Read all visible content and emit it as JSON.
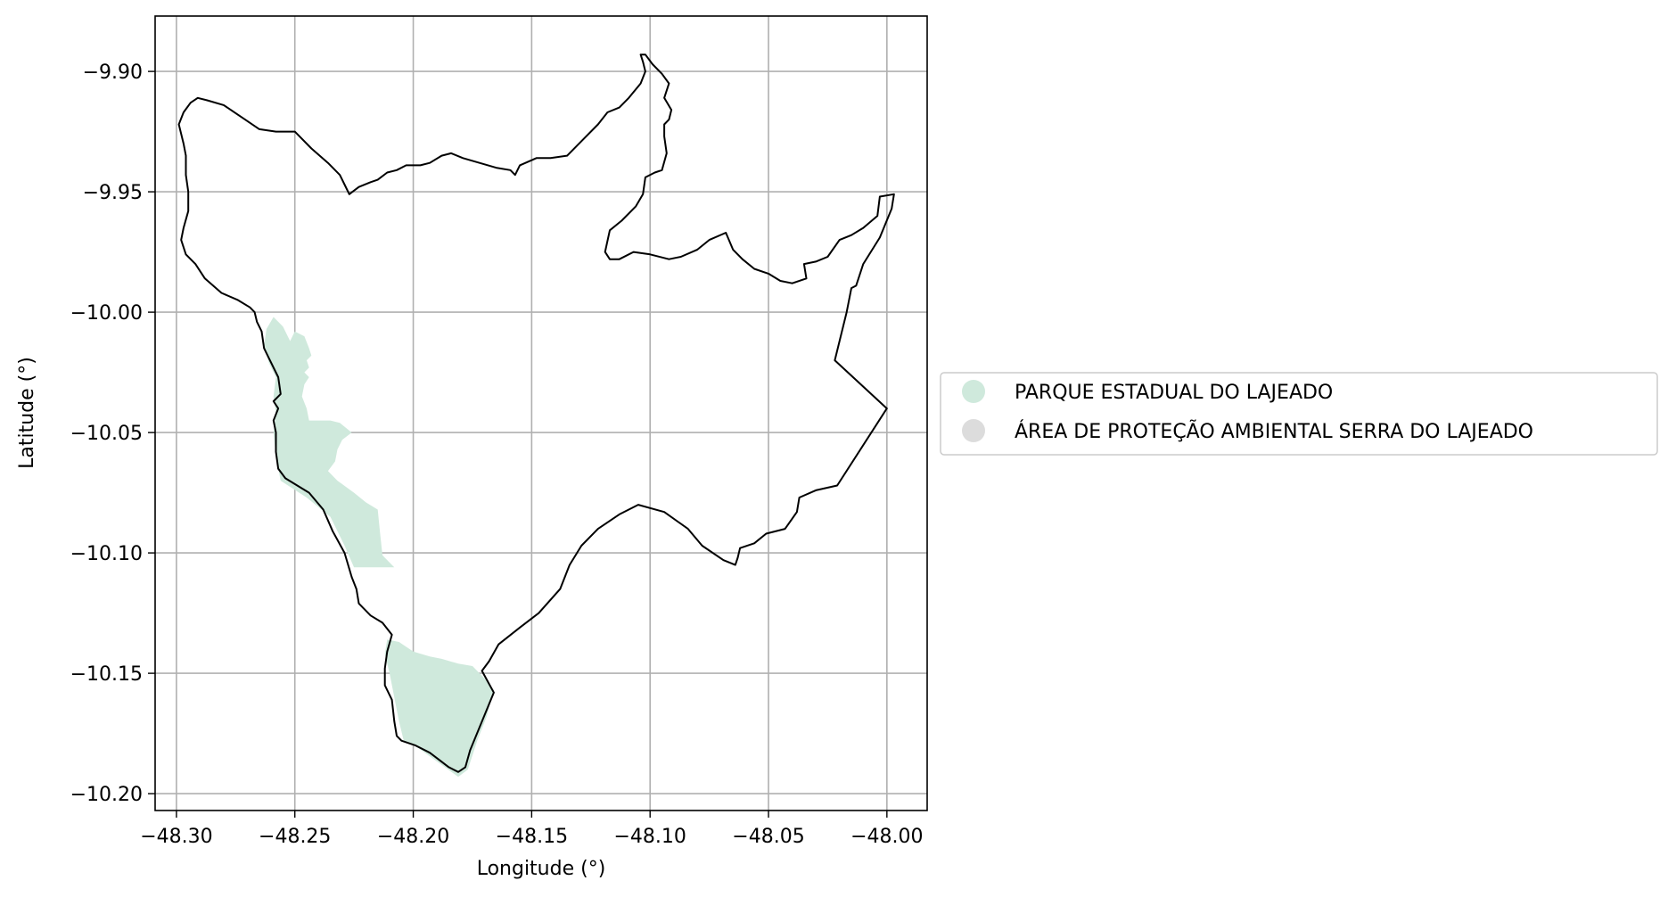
{
  "axes": {
    "xlabel": "Longitude (°)",
    "ylabel": "Latitude (°)",
    "xlim": [
      -48.309,
      -47.983
    ],
    "ylim": [
      -10.207,
      -9.877
    ],
    "xticks": [
      -48.3,
      -48.25,
      -48.2,
      -48.15,
      -48.1,
      -48.05,
      -48.0
    ],
    "yticks": [
      -9.9,
      -9.95,
      -10.0,
      -10.05,
      -10.1,
      -10.15,
      -10.2
    ],
    "xtick_labels": [
      "−48.30",
      "−48.25",
      "−48.20",
      "−48.15",
      "−48.10",
      "−48.05",
      "−48.00"
    ],
    "ytick_labels": [
      "−9.90",
      "−9.95",
      "−10.00",
      "−10.05",
      "−10.10",
      "−10.15",
      "−10.20"
    ],
    "grid": true
  },
  "legend": {
    "placement": "outside-right",
    "items": [
      {
        "label": "PARQUE ESTADUAL DO LAJEADO",
        "color": "#cfe9dc"
      },
      {
        "label": "ÁREA DE PROTEÇÃO AMBIENTAL SERRA DO LAJEADO",
        "color": "#dcdcdc"
      }
    ]
  },
  "chart_data": {
    "type": "map",
    "layers": [
      {
        "name": "PARQUE ESTADUAL DO LAJEADO",
        "color": "#cfe9dc",
        "style": "fill",
        "polygons": [
          [
            [
              -48.259,
              -10.002
            ],
            [
              -48.255,
              -10.006
            ],
            [
              -48.252,
              -10.012
            ],
            [
              -48.25,
              -10.008
            ],
            [
              -48.246,
              -10.01
            ],
            [
              -48.244,
              -10.015
            ],
            [
              -48.243,
              -10.018
            ],
            [
              -48.245,
              -10.02
            ],
            [
              -48.244,
              -10.023
            ],
            [
              -48.246,
              -10.025
            ],
            [
              -48.244,
              -10.027
            ],
            [
              -48.246,
              -10.03
            ],
            [
              -48.247,
              -10.035
            ],
            [
              -48.245,
              -10.04
            ],
            [
              -48.244,
              -10.045
            ],
            [
              -48.235,
              -10.045
            ],
            [
              -48.231,
              -10.046
            ],
            [
              -48.226,
              -10.05
            ],
            [
              -48.23,
              -10.053
            ],
            [
              -48.232,
              -10.057
            ],
            [
              -48.233,
              -10.062
            ],
            [
              -48.236,
              -10.066
            ],
            [
              -48.232,
              -10.07
            ],
            [
              -48.225,
              -10.075
            ],
            [
              -48.22,
              -10.079
            ],
            [
              -48.215,
              -10.082
            ],
            [
              -48.214,
              -10.092
            ],
            [
              -48.213,
              -10.101
            ],
            [
              -48.208,
              -10.106
            ],
            [
              -48.225,
              -10.106
            ],
            [
              -48.229,
              -10.097
            ],
            [
              -48.235,
              -10.085
            ],
            [
              -48.245,
              -10.077
            ],
            [
              -48.256,
              -10.07
            ],
            [
              -48.258,
              -10.06
            ],
            [
              -48.259,
              -10.05
            ],
            [
              -48.258,
              -10.042
            ],
            [
              -48.259,
              -10.035
            ],
            [
              -48.258,
              -10.027
            ],
            [
              -48.261,
              -10.021
            ],
            [
              -48.263,
              -10.014
            ],
            [
              -48.262,
              -10.007
            ]
          ],
          [
            [
              -48.211,
              -10.136
            ],
            [
              -48.206,
              -10.137
            ],
            [
              -48.2,
              -10.141
            ],
            [
              -48.193,
              -10.143
            ],
            [
              -48.188,
              -10.144
            ],
            [
              -48.181,
              -10.146
            ],
            [
              -48.175,
              -10.147
            ],
            [
              -48.17,
              -10.152
            ],
            [
              -48.166,
              -10.157
            ],
            [
              -48.169,
              -10.168
            ],
            [
              -48.173,
              -10.178
            ],
            [
              -48.177,
              -10.19
            ],
            [
              -48.181,
              -10.193
            ],
            [
              -48.188,
              -10.188
            ],
            [
              -48.198,
              -10.181
            ],
            [
              -48.204,
              -10.178
            ],
            [
              -48.206,
              -10.17
            ],
            [
              -48.208,
              -10.16
            ],
            [
              -48.21,
              -10.15
            ],
            [
              -48.212,
              -10.142
            ]
          ]
        ]
      },
      {
        "name": "ÁREA DE PROTEÇÃO AMBIENTAL SERRA DO LAJEADO",
        "color": "#000000",
        "style": "outline",
        "polygons": [
          [
            [
              -48.291,
              -9.911
            ],
            [
              -48.287,
              -9.912
            ],
            [
              -48.28,
              -9.914
            ],
            [
              -48.271,
              -9.92
            ],
            [
              -48.265,
              -9.924
            ],
            [
              -48.258,
              -9.925
            ],
            [
              -48.25,
              -9.925
            ],
            [
              -48.243,
              -9.932
            ],
            [
              -48.236,
              -9.938
            ],
            [
              -48.231,
              -9.943
            ],
            [
              -48.229,
              -9.947
            ],
            [
              -48.227,
              -9.951
            ],
            [
              -48.223,
              -9.948
            ],
            [
              -48.218,
              -9.946
            ],
            [
              -48.215,
              -9.945
            ],
            [
              -48.211,
              -9.942
            ],
            [
              -48.207,
              -9.941
            ],
            [
              -48.203,
              -9.939
            ],
            [
              -48.197,
              -9.939
            ],
            [
              -48.193,
              -9.938
            ],
            [
              -48.188,
              -9.935
            ],
            [
              -48.184,
              -9.934
            ],
            [
              -48.179,
              -9.936
            ],
            [
              -48.172,
              -9.938
            ],
            [
              -48.165,
              -9.94
            ],
            [
              -48.159,
              -9.941
            ],
            [
              -48.157,
              -9.943
            ],
            [
              -48.155,
              -9.939
            ],
            [
              -48.148,
              -9.936
            ],
            [
              -48.142,
              -9.936
            ],
            [
              -48.135,
              -9.935
            ],
            [
              -48.128,
              -9.928
            ],
            [
              -48.122,
              -9.922
            ],
            [
              -48.118,
              -9.917
            ],
            [
              -48.113,
              -9.915
            ],
            [
              -48.109,
              -9.911
            ],
            [
              -48.104,
              -9.905
            ],
            [
              -48.102,
              -9.9
            ],
            [
              -48.103,
              -9.896
            ],
            [
              -48.104,
              -9.893
            ],
            [
              -48.102,
              -9.893
            ],
            [
              -48.099,
              -9.897
            ],
            [
              -48.095,
              -9.901
            ],
            [
              -48.092,
              -9.905
            ],
            [
              -48.094,
              -9.911
            ],
            [
              -48.091,
              -9.916
            ],
            [
              -48.092,
              -9.92
            ],
            [
              -48.094,
              -9.922
            ],
            [
              -48.094,
              -9.927
            ],
            [
              -48.093,
              -9.934
            ],
            [
              -48.095,
              -9.941
            ],
            [
              -48.098,
              -9.942
            ],
            [
              -48.102,
              -9.944
            ],
            [
              -48.103,
              -9.951
            ],
            [
              -48.106,
              -9.956
            ],
            [
              -48.112,
              -9.962
            ],
            [
              -48.117,
              -9.966
            ],
            [
              -48.119,
              -9.975
            ],
            [
              -48.117,
              -9.978
            ],
            [
              -48.113,
              -9.978
            ],
            [
              -48.107,
              -9.975
            ],
            [
              -48.1,
              -9.976
            ],
            [
              -48.092,
              -9.978
            ],
            [
              -48.087,
              -9.977
            ],
            [
              -48.08,
              -9.974
            ],
            [
              -48.075,
              -9.97
            ],
            [
              -48.068,
              -9.967
            ],
            [
              -48.065,
              -9.974
            ],
            [
              -48.061,
              -9.978
            ],
            [
              -48.056,
              -9.982
            ],
            [
              -48.05,
              -9.984
            ],
            [
              -48.045,
              -9.987
            ],
            [
              -48.04,
              -9.988
            ],
            [
              -48.034,
              -9.986
            ],
            [
              -48.035,
              -9.98
            ],
            [
              -48.03,
              -9.979
            ],
            [
              -48.025,
              -9.977
            ],
            [
              -48.02,
              -9.97
            ],
            [
              -48.015,
              -9.968
            ],
            [
              -48.01,
              -9.965
            ],
            [
              -48.004,
              -9.96
            ],
            [
              -48.003,
              -9.952
            ],
            [
              -47.997,
              -9.951
            ],
            [
              -47.998,
              -9.957
            ],
            [
              -48.003,
              -9.969
            ],
            [
              -48.01,
              -9.98
            ],
            [
              -48.013,
              -9.989
            ],
            [
              -48.015,
              -9.99
            ],
            [
              -48.017,
              -10.0
            ],
            [
              -48.022,
              -10.02
            ],
            [
              -48.0,
              -10.04
            ],
            [
              -48.021,
              -10.072
            ],
            [
              -48.03,
              -10.074
            ],
            [
              -48.037,
              -10.077
            ],
            [
              -48.038,
              -10.083
            ],
            [
              -48.043,
              -10.09
            ],
            [
              -48.051,
              -10.092
            ],
            [
              -48.056,
              -10.096
            ],
            [
              -48.062,
              -10.098
            ],
            [
              -48.063,
              -10.102
            ],
            [
              -48.064,
              -10.105
            ],
            [
              -48.069,
              -10.103
            ],
            [
              -48.078,
              -10.097
            ],
            [
              -48.084,
              -10.09
            ],
            [
              -48.094,
              -10.083
            ],
            [
              -48.105,
              -10.08
            ],
            [
              -48.113,
              -10.084
            ],
            [
              -48.122,
              -10.09
            ],
            [
              -48.129,
              -10.097
            ],
            [
              -48.134,
              -10.105
            ],
            [
              -48.138,
              -10.115
            ],
            [
              -48.147,
              -10.125
            ],
            [
              -48.155,
              -10.131
            ],
            [
              -48.164,
              -10.138
            ],
            [
              -48.168,
              -10.145
            ],
            [
              -48.171,
              -10.149
            ],
            [
              -48.166,
              -10.158
            ],
            [
              -48.171,
              -10.17
            ],
            [
              -48.176,
              -10.182
            ],
            [
              -48.178,
              -10.189
            ],
            [
              -48.181,
              -10.191
            ],
            [
              -48.185,
              -10.189
            ],
            [
              -48.189,
              -10.186
            ],
            [
              -48.193,
              -10.183
            ],
            [
              -48.199,
              -10.18
            ],
            [
              -48.205,
              -10.178
            ],
            [
              -48.207,
              -10.176
            ],
            [
              -48.208,
              -10.17
            ],
            [
              -48.209,
              -10.161
            ],
            [
              -48.212,
              -10.155
            ],
            [
              -48.212,
              -10.148
            ],
            [
              -48.211,
              -10.141
            ],
            [
              -48.209,
              -10.134
            ],
            [
              -48.213,
              -10.129
            ],
            [
              -48.218,
              -10.126
            ],
            [
              -48.223,
              -10.121
            ],
            [
              -48.224,
              -10.115
            ],
            [
              -48.226,
              -10.11
            ],
            [
              -48.229,
              -10.1
            ],
            [
              -48.234,
              -10.091
            ],
            [
              -48.238,
              -10.082
            ],
            [
              -48.244,
              -10.075
            ],
            [
              -48.254,
              -10.069
            ],
            [
              -48.257,
              -10.065
            ],
            [
              -48.258,
              -10.058
            ],
            [
              -48.258,
              -10.05
            ],
            [
              -48.259,
              -10.045
            ],
            [
              -48.257,
              -10.04
            ],
            [
              -48.259,
              -10.037
            ],
            [
              -48.256,
              -10.034
            ],
            [
              -48.257,
              -10.027
            ],
            [
              -48.261,
              -10.019
            ],
            [
              -48.263,
              -10.015
            ],
            [
              -48.264,
              -10.008
            ],
            [
              -48.266,
              -10.004
            ],
            [
              -48.267,
              -10.0
            ],
            [
              -48.269,
              -9.998
            ],
            [
              -48.274,
              -9.995
            ],
            [
              -48.281,
              -9.992
            ],
            [
              -48.288,
              -9.986
            ],
            [
              -48.292,
              -9.98
            ],
            [
              -48.296,
              -9.976
            ],
            [
              -48.298,
              -9.97
            ],
            [
              -48.297,
              -9.965
            ],
            [
              -48.295,
              -9.958
            ],
            [
              -48.295,
              -9.95
            ],
            [
              -48.296,
              -9.943
            ],
            [
              -48.296,
              -9.935
            ],
            [
              -48.297,
              -9.93
            ],
            [
              -48.299,
              -9.922
            ],
            [
              -48.297,
              -9.917
            ],
            [
              -48.294,
              -9.913
            ]
          ]
        ]
      }
    ]
  }
}
